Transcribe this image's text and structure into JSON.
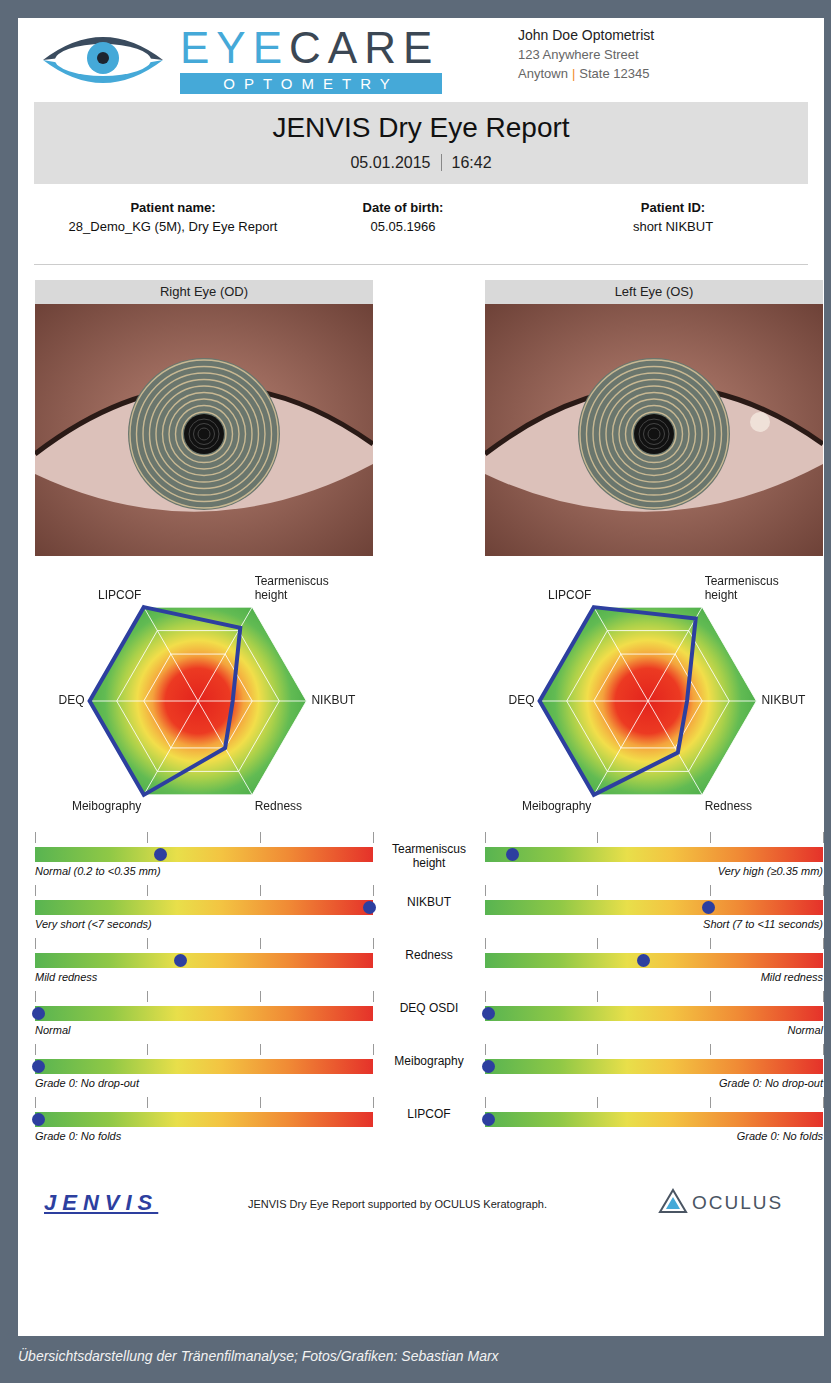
{
  "header": {
    "brand": "EYECARE",
    "brand_sub": "OPTOMETRY",
    "practice": [
      "John Doe Optometrist",
      "123 Anywhere Street"
    ],
    "city": "Anytown",
    "separator": "|",
    "state": "State 12345"
  },
  "report": {
    "title": "JENVIS Dry Eye Report",
    "date": "05.01.2015",
    "time": "16:42"
  },
  "patient": [
    {
      "label": "Patient name:",
      "value": "28_Demo_KG (5M), Dry Eye Report"
    },
    {
      "label": "Date of birth:",
      "value": "05.05.1966"
    },
    {
      "label": "Patient ID:",
      "value": "short NIKBUT"
    }
  ],
  "chart_data": [
    {
      "type": "radar",
      "title": "Right Eye (OD)",
      "categories": [
        "LIPCOF",
        "Tearmeniscus height",
        "NIKBUT",
        "Redness",
        "Meibography",
        "DEQ"
      ],
      "values": [
        100,
        78,
        32,
        50,
        100,
        100
      ],
      "color": "#2d3f9f",
      "ylim": [
        0,
        100
      ],
      "yticks": [
        25,
        50,
        75,
        100
      ],
      "tick_labels": false,
      "grid": true
    },
    {
      "type": "radar",
      "title": "Left Eye (OS)",
      "categories": [
        "LIPCOF",
        "Tearmeniscus height",
        "NIKBUT",
        "Redness",
        "Meibography",
        "DEQ"
      ],
      "values": [
        100,
        88,
        36,
        55,
        100,
        100
      ],
      "color": "#2d3f9f",
      "ylim": [
        0,
        100
      ],
      "yticks": [
        25,
        50,
        75,
        100
      ],
      "tick_labels": false,
      "grid": true
    }
  ],
  "sliders": {
    "xlim": [
      0,
      100
    ],
    "xticks": [
      0,
      33.3,
      66.7,
      100
    ],
    "color": "#2d3f9f",
    "rows": [
      {
        "label": "Tearmeniscus height",
        "right": {
          "value": 37,
          "text": "Normal (0.2 to <0.35 mm)"
        },
        "left": {
          "value": 8,
          "text": "Very high (≥0.35 mm)"
        }
      },
      {
        "label": "NIKBUT",
        "right": {
          "value": 99,
          "text": "Very short (<7 seconds)"
        },
        "left": {
          "value": 66,
          "text": "Short (7 to <11 seconds)"
        }
      },
      {
        "label": "Redness",
        "right": {
          "value": 43,
          "text": "Mild redness"
        },
        "left": {
          "value": 47,
          "text": "Mild redness"
        }
      },
      {
        "label": "DEQ OSDI",
        "right": {
          "value": 1,
          "text": "Normal"
        },
        "left": {
          "value": 1,
          "text": "Normal"
        }
      },
      {
        "label": "Meibography",
        "right": {
          "value": 1,
          "text": "Grade 0: No drop-out"
        },
        "left": {
          "value": 1,
          "text": "Grade 0: No drop-out"
        }
      },
      {
        "label": "LIPCOF",
        "right": {
          "value": 1,
          "text": "Grade 0: No folds"
        },
        "left": {
          "value": 1,
          "text": "Grade 0: No folds"
        }
      }
    ]
  },
  "footer": {
    "logo_left": "JENVIS",
    "text": "JENVIS Dry Eye Report supported by OCULUS Keratograph.",
    "logo_right": "OCULUS"
  },
  "caption": "Übersichtsdarstellung der Tränenfilmanalyse; Fotos/Grafiken: Sebastian Marx"
}
